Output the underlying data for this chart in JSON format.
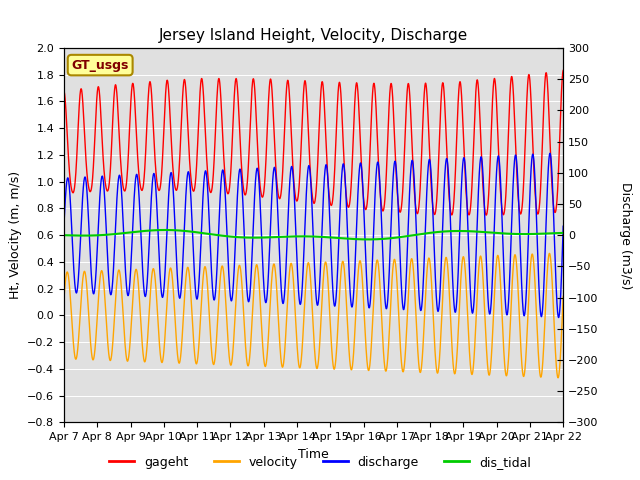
{
  "title": "Jersey Island Height, Velocity, Discharge",
  "xlabel": "Time",
  "ylabel_left": "Ht, Velocity (m, m/s)",
  "ylabel_right": "Discharge (m3/s)",
  "ylim_left": [
    -0.8,
    2.0
  ],
  "ylim_right": [
    -300,
    300
  ],
  "x_tick_labels": [
    "Apr 7",
    "Apr 8",
    "Apr 9",
    "Apr 10",
    "Apr 11",
    "Apr 12",
    "Apr 13",
    "Apr 14",
    "Apr 15",
    "Apr 16",
    "Apr 17",
    "Apr 18",
    "Apr 19",
    "Apr 20",
    "Apr 21",
    "Apr 22"
  ],
  "gageht_color": "#FF0000",
  "velocity_color": "#FFA500",
  "discharge_color": "#0000FF",
  "dis_tidal_color": "#00CC00",
  "plot_bg_color": "#E0E0E0",
  "legend_box_facecolor": "#FFFF99",
  "legend_box_edgecolor": "#AA8800",
  "legend_text_color": "#800000",
  "gt_label": "GT_usgs",
  "legend_items": [
    "gageht",
    "velocity",
    "discharge",
    "dis_tidal"
  ],
  "tidal_period_hours": 12.42,
  "n_points": 4000
}
